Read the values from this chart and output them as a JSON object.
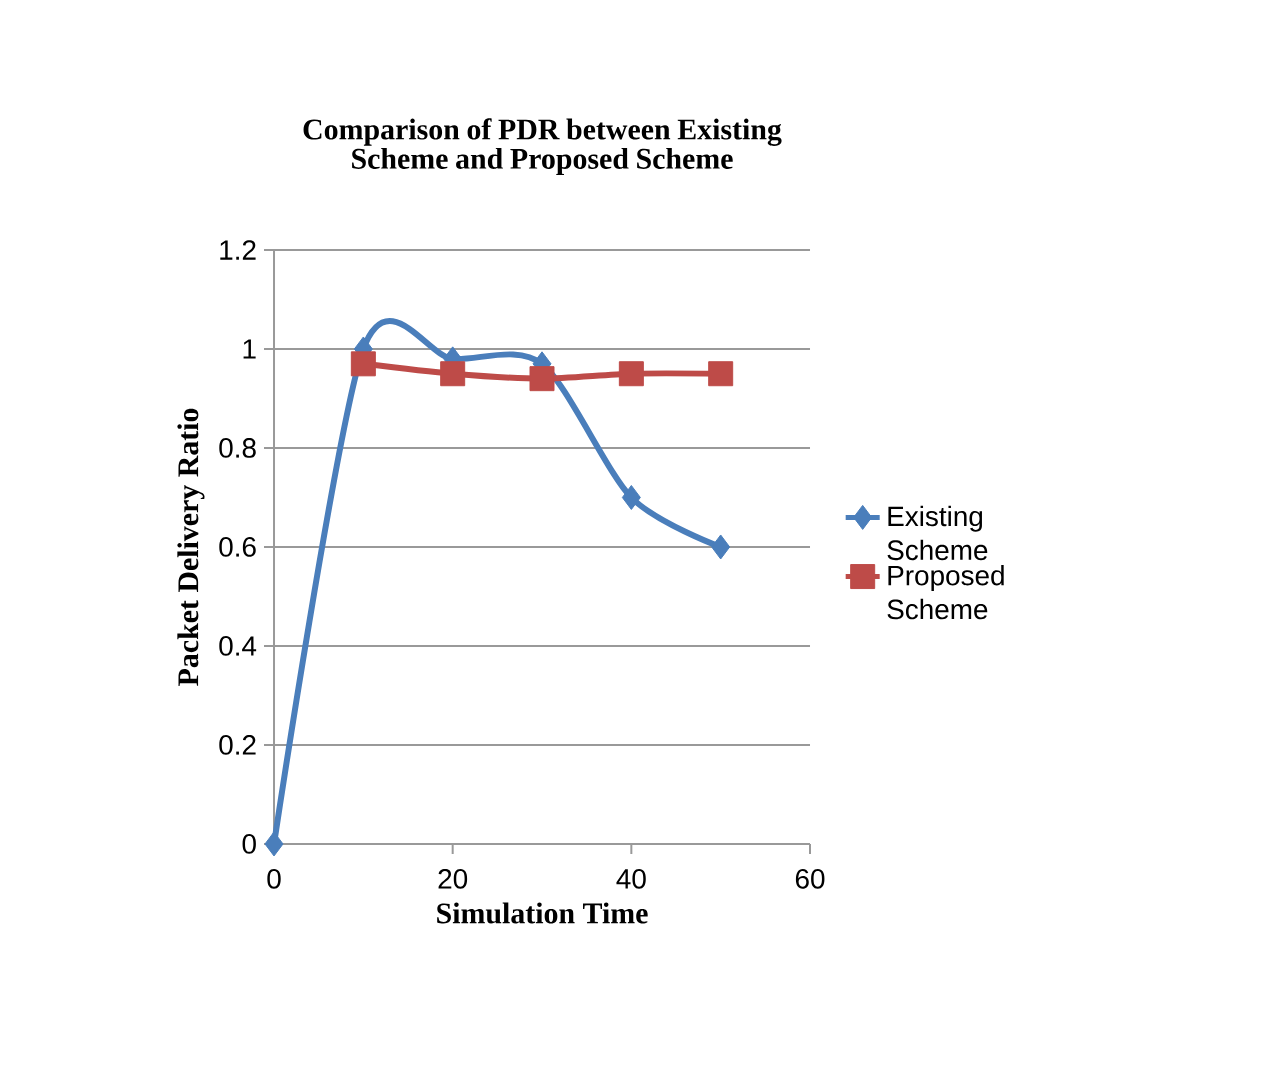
{
  "chart_data": {
    "type": "line",
    "title": "Comparison of PDR between Existing Scheme and Proposed Scheme",
    "xlabel": "Simulation Time",
    "ylabel": "Packet Delivery Ratio",
    "series": [
      {
        "name": "Existing Scheme",
        "color": "#4a7ebb",
        "marker": "diamond",
        "x": [
          0,
          10,
          20,
          30,
          40,
          50
        ],
        "values": [
          0,
          1.0,
          0.98,
          0.97,
          0.7,
          0.6
        ]
      },
      {
        "name": "Proposed Scheme",
        "color": "#be4b48",
        "marker": "square",
        "x": [
          10,
          20,
          30,
          40,
          50
        ],
        "values": [
          0.97,
          0.95,
          0.94,
          0.95,
          0.95
        ]
      }
    ],
    "xlim": [
      0,
      60
    ],
    "xticks": [
      0,
      20,
      40,
      60
    ],
    "ylim": [
      0,
      1.2
    ],
    "yticks": [
      0,
      0.2,
      0.4,
      0.6,
      0.8,
      1,
      1.2
    ],
    "grid": "y",
    "legend": "right"
  }
}
